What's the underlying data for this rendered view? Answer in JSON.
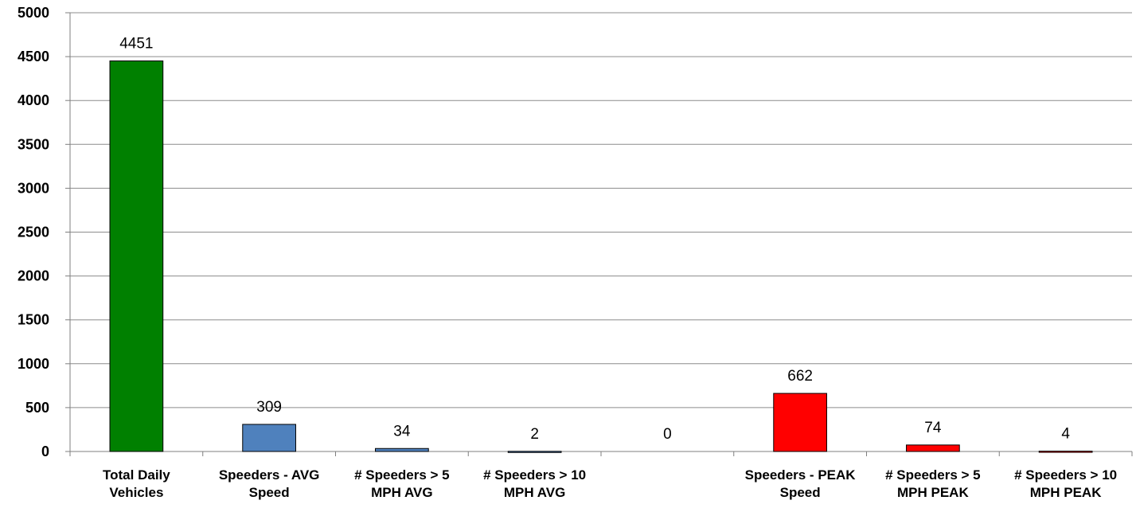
{
  "chart_data": {
    "type": "bar",
    "title": "",
    "xlabel": "",
    "ylabel": "",
    "ylim": [
      0,
      5000
    ],
    "yticks": [
      0,
      500,
      1000,
      1500,
      2000,
      2500,
      3000,
      3500,
      4000,
      4500,
      5000
    ],
    "grid": true,
    "legend": "none",
    "categories": [
      [
        "Total Daily",
        "Vehicles"
      ],
      [
        "Speeders - AVG",
        "Speed"
      ],
      [
        "# Speeders > 5",
        "MPH AVG"
      ],
      [
        "# Speeders > 10",
        "MPH AVG"
      ],
      [
        "",
        ""
      ],
      [
        "Speeders - PEAK",
        "Speed"
      ],
      [
        "# Speeders > 5",
        "MPH PEAK"
      ],
      [
        "# Speeders > 10",
        "MPH PEAK"
      ]
    ],
    "values": [
      4451,
      309,
      34,
      2,
      0,
      662,
      74,
      4
    ],
    "data_labels": [
      "4451",
      "309",
      "34",
      "2",
      "0",
      "662",
      "74",
      "4"
    ],
    "colors": [
      "#008000",
      "#4f81bd",
      "#4f81bd",
      "#4f81bd",
      "#4f81bd",
      "#ff0000",
      "#ff0000",
      "#ff0000"
    ]
  }
}
